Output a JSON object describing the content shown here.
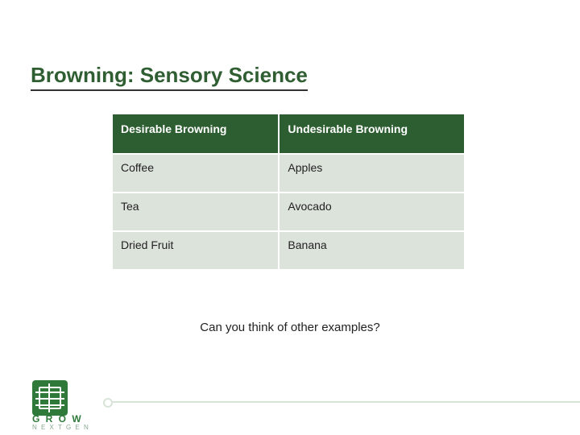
{
  "title": "Browning: Sensory Science",
  "table": {
    "header_bg": "#2d5e31",
    "header_fg": "#ffffff",
    "cell_bg": "#dce3db",
    "cell_fg": "#222222",
    "columns": [
      "Desirable Browning",
      "Undesirable Browning"
    ],
    "rows": [
      [
        "Coffee",
        "Apples"
      ],
      [
        "Tea",
        "Avocado"
      ],
      [
        "Dried Fruit",
        "Banana"
      ]
    ]
  },
  "caption": "Can you think of other examples?",
  "logo": {
    "line1": "G R O W",
    "line2": "N E X T  G E N",
    "color": "#2f7a3a"
  }
}
